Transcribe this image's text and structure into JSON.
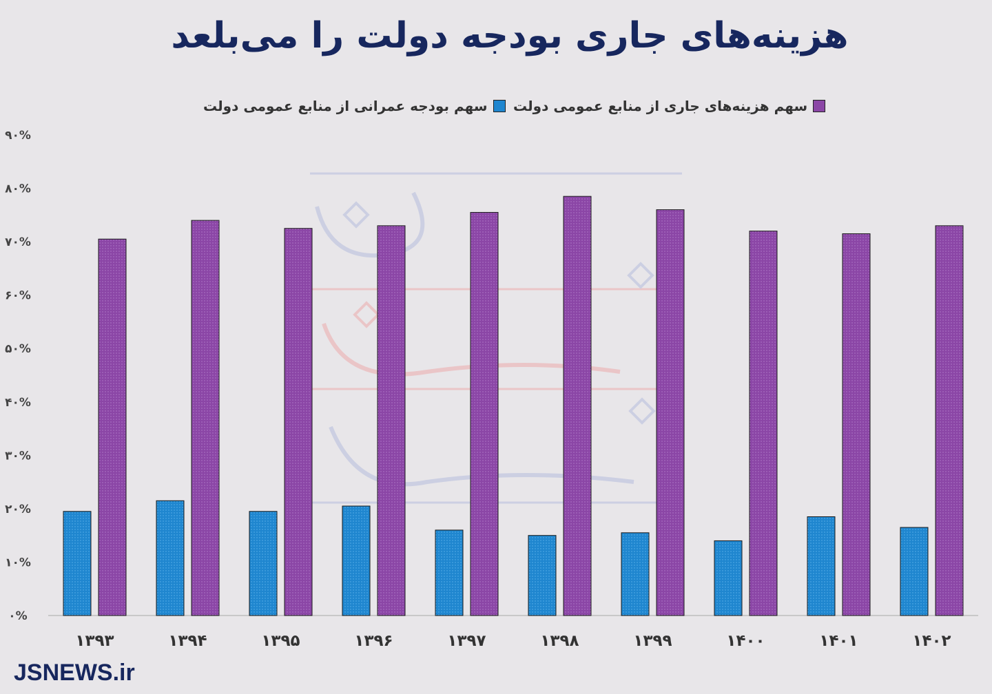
{
  "chart_data": {
    "type": "bar",
    "title": "هزینه‌های جاری بودجه دولت را می‌بلعد",
    "categories": [
      "۱۳۹۳",
      "۱۳۹۴",
      "۱۳۹۵",
      "۱۳۹۶",
      "۱۳۹۷",
      "۱۳۹۸",
      "۱۳۹۹",
      "۱۴۰۰",
      "۱۴۰۱",
      "۱۴۰۲"
    ],
    "series": [
      {
        "name": "سهم بودجه عمرانی از منابع عمومی دولت",
        "color": "#1f86cf",
        "values": [
          19.5,
          21.5,
          19.5,
          20.5,
          16,
          15,
          15.5,
          14,
          18.5,
          16.5
        ]
      },
      {
        "name": "سهم هزینه‌های جاری از منابع عمومی دولت",
        "color": "#8b46a6",
        "values": [
          70.5,
          74,
          72.5,
          73,
          75.5,
          78.5,
          76,
          72,
          71.5,
          73
        ]
      }
    ],
    "ylim": [
      0,
      90
    ],
    "yticks": [
      0,
      10,
      20,
      30,
      40,
      50,
      60,
      70,
      80,
      90
    ],
    "ytick_labels": [
      "۰%",
      "۱۰%",
      "۲۰%",
      "۳۰%",
      "۴۰%",
      "۵۰%",
      "۶۰%",
      "۷۰%",
      "۸۰%",
      "۹۰%"
    ],
    "grid": false,
    "legend": "top-center"
  },
  "footer": {
    "source": "JSNEWS.ir"
  }
}
